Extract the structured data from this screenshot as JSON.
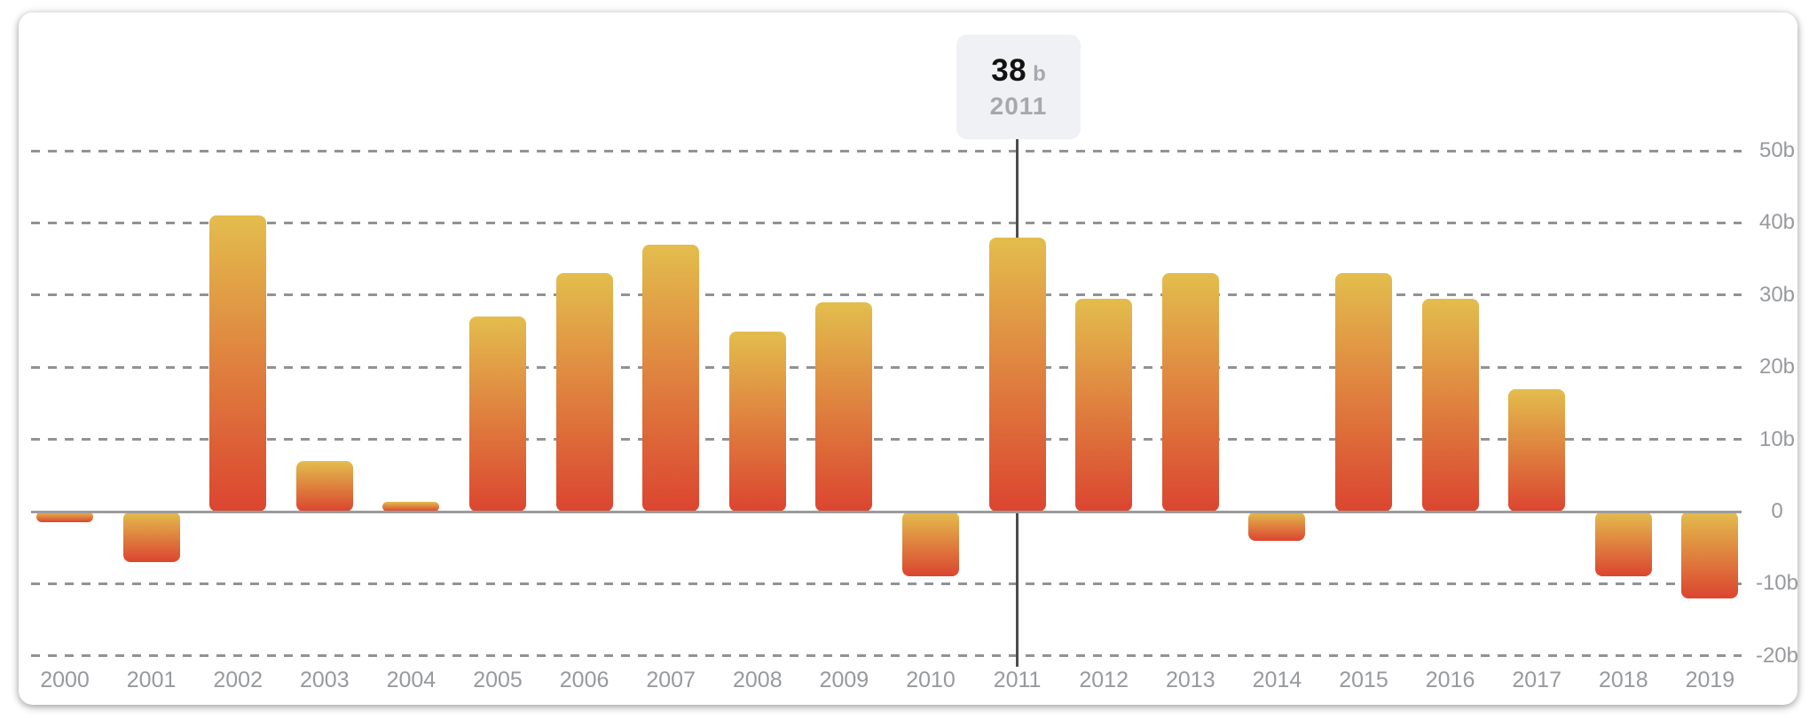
{
  "tooltip": {
    "value": "38",
    "unit": "b",
    "year": "2011"
  },
  "chart_data": {
    "type": "bar",
    "title": "",
    "xlabel": "",
    "ylabel": "",
    "unit": "b",
    "categories": [
      "2000",
      "2001",
      "2002",
      "2003",
      "2004",
      "2005",
      "2006",
      "2007",
      "2008",
      "2009",
      "2010",
      "2011",
      "2012",
      "2013",
      "2014",
      "2015",
      "2016",
      "2017",
      "2018",
      "2019"
    ],
    "values": [
      -1.5,
      -7,
      41,
      7,
      1.3,
      27,
      33,
      37,
      25,
      29,
      -9,
      38,
      29.5,
      33,
      -4,
      33,
      29.5,
      17,
      -9,
      -12
    ],
    "ylim": [
      -20,
      50
    ],
    "yticks": [
      {
        "v": 50,
        "label": "50b"
      },
      {
        "v": 40,
        "label": "40b"
      },
      {
        "v": 30,
        "label": "30b"
      },
      {
        "v": 20,
        "label": "20b"
      },
      {
        "v": 10,
        "label": "10b"
      },
      {
        "v": 0,
        "label": "0"
      },
      {
        "v": -10,
        "label": "-10b"
      },
      {
        "v": -20,
        "label": "-20b"
      }
    ],
    "grid": "horizontal-dashed",
    "legend": "none",
    "highlighted_category": "2011",
    "highlighted_value": "38"
  },
  "colors": {
    "bar_gradient_top": "#e3bd4d",
    "bar_gradient_bottom": "#db4530",
    "grid": "#909396",
    "axis": "#9b9b9b",
    "tick_text": "#97999d",
    "hover_line": "#4d4d4d",
    "tooltip_bg": "#f0f1f4",
    "tooltip_muted_text": "#a5a9ae",
    "card_bg": "#ffffff"
  }
}
